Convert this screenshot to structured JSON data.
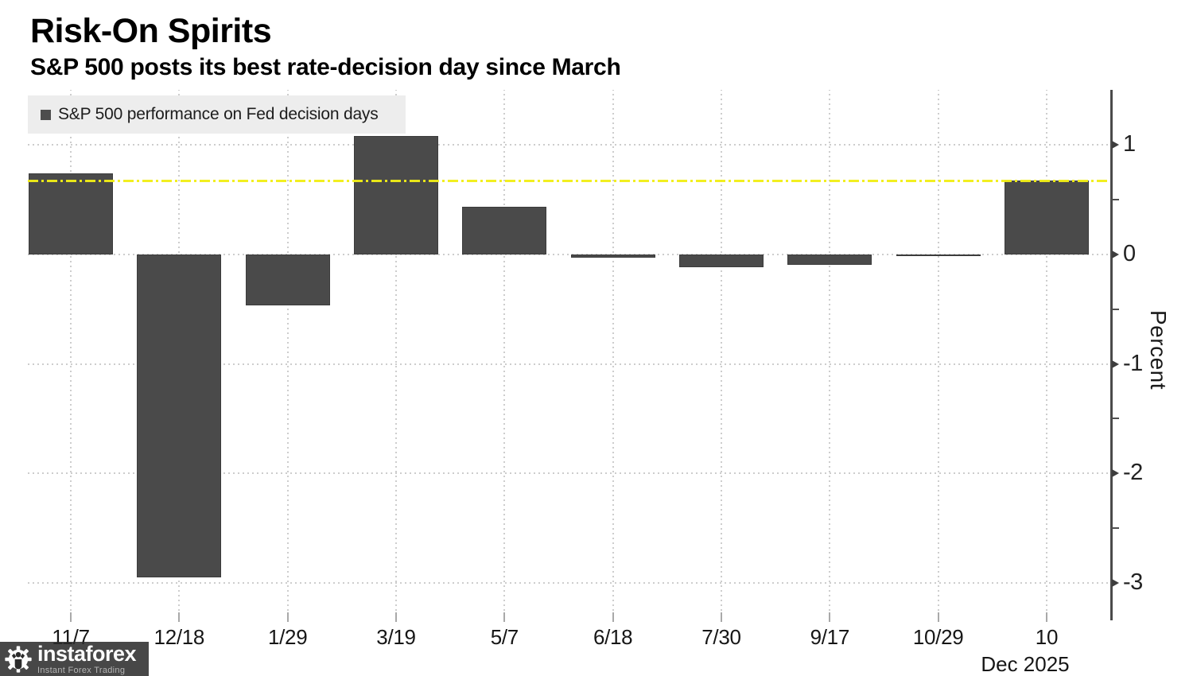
{
  "title": "Risk-On Spirits",
  "subtitle": "S&P 500 posts its best rate-decision day since March",
  "legend": {
    "label": "S&P 500 performance on Fed decision days",
    "swatch_color": "#4d4d4d"
  },
  "axis": {
    "y_label": "Percent",
    "y_major_ticks": [
      1,
      0,
      -1,
      -2,
      -3
    ],
    "y_minor_ticks": [
      0.5,
      -0.5,
      -1.5,
      -2.5
    ]
  },
  "reference_line": {
    "value": 0.67,
    "color": "#f1ee15",
    "style": "dash-dot"
  },
  "chart_data": {
    "type": "bar",
    "title": "Risk-On Spirits",
    "subtitle": "S&P 500 posts its best rate-decision day since March",
    "series_name": "S&P 500 performance on Fed decision days",
    "categories": [
      "11/7",
      "12/18",
      "1/29",
      "3/19",
      "5/7",
      "6/18",
      "7/30",
      "9/17",
      "10/29",
      "10"
    ],
    "values": [
      0.74,
      -2.95,
      -0.47,
      1.08,
      0.43,
      -0.03,
      -0.12,
      -0.1,
      -0.01,
      0.67
    ],
    "x_axis_secondary_label": "Dec 2025",
    "xlabel": "",
    "ylabel": "Percent",
    "ylim": [
      -3.34,
      1.5
    ],
    "bar_color": "#4a4a4a",
    "grid": true,
    "legend_position": "top-left",
    "reference_line_value": 0.67
  },
  "watermark": {
    "brand": "instaforex",
    "tagline": "Instant Forex Trading"
  },
  "colors": {
    "bar": "#4a4a4a",
    "reference_yellow": "#f1ee15",
    "background": "#ffffff",
    "legend_background": "#ededed",
    "gridline": "#cdcdcd",
    "axis": "#4a4a4a"
  }
}
